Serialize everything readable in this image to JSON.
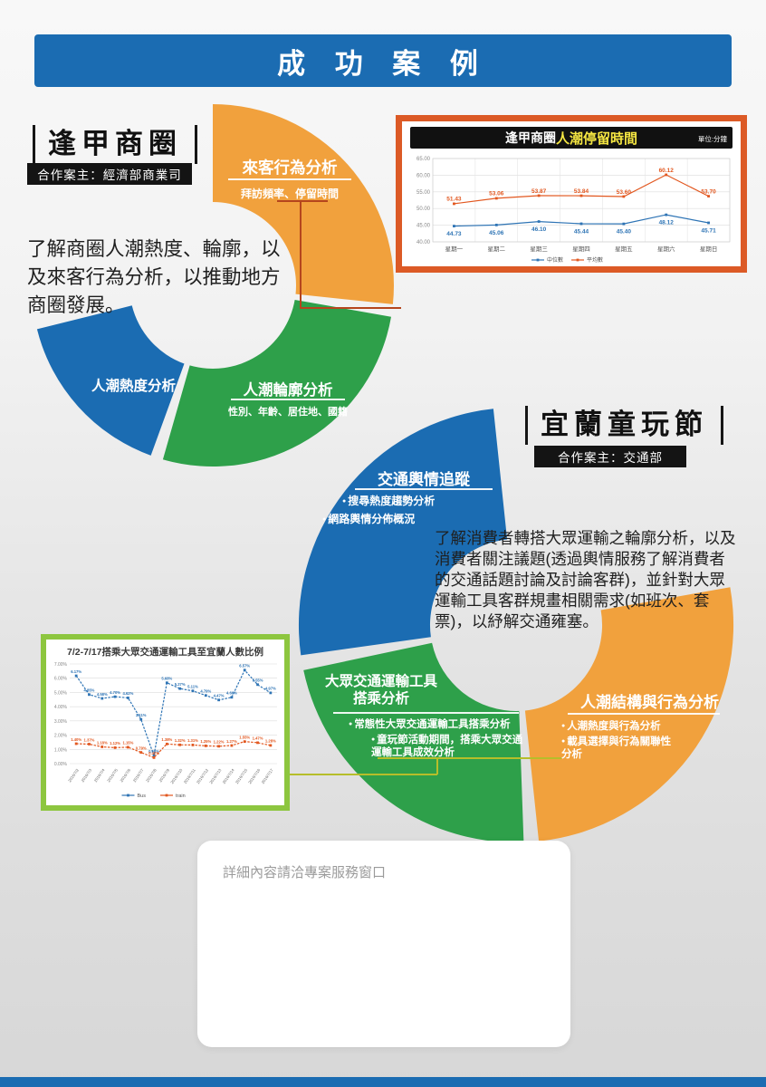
{
  "page": {
    "banner": "成 功 案 例",
    "note": "詳細內容請洽專案服務窗口"
  },
  "colors": {
    "primary_blue": "#1b6cb2",
    "orange": "#f1a13d",
    "green": "#2ea04a",
    "chart1_border": "#dc5a26",
    "chart2_border": "#8dc63f",
    "chart_blue": "#2e74b5",
    "chart_orange": "#e2571f",
    "highlight_yellow": "#f5e642",
    "connector_red": "#b5451d",
    "connector_olive": "#b6be2a"
  },
  "fengjia": {
    "title": "逢甲商圈",
    "client": "合作案主：經濟部商業司",
    "description": "了解商圈人潮熱度、輪廓，以及來客行為分析，以推動地方商圈發展。",
    "segments": {
      "orange": {
        "title": "來客行為分析",
        "subtitle": "拜訪頻率、停留時間"
      },
      "blue": {
        "title": "人潮熱度分析"
      },
      "green": {
        "title": "人潮輪廓分析",
        "subtitle": "性別、年齡、居住地、國籍"
      }
    }
  },
  "yilan": {
    "title": "宜蘭童玩節",
    "client": "合作案主：交通部",
    "description": "了解消費者轉搭大眾運輸之輪廓分析，以及消費者關注議題(透過輿情服務了解消費者的交通話題討論及討論客群)，並針對大眾運輸工具客群規畫相關需求(如班次、套票)，以紓解交通雍塞。",
    "segments": {
      "blue": {
        "title": "交通輿情追蹤",
        "bullets": [
          "搜尋熱度趨勢分析",
          "網路輿情分佈概況"
        ]
      },
      "green": {
        "title_line1": "大眾交通運輸工具",
        "title_line2": "搭乘分析",
        "bullets": [
          "常態性大眾交通運輸工具搭乘分析",
          "童玩節活動期間，搭乘大眾交通運輸工具成效分析"
        ]
      },
      "orange": {
        "title": "人潮結構與行為分析",
        "bullets": [
          "人潮熱度與行為分析",
          "載具選擇與行為關聯性分析"
        ]
      }
    }
  },
  "chart_data": [
    {
      "type": "line",
      "title": "逢甲商圈人潮停留時間",
      "title_prefix": "逢甲商圈",
      "title_highlight": "人潮停留時間",
      "unit_label": "單位:分鐘",
      "categories": [
        "星期一",
        "星期二",
        "星期三",
        "星期四",
        "星期五",
        "星期六",
        "星期日"
      ],
      "series": [
        {
          "name": "中位數",
          "color": "#2e74b5",
          "values": [
            44.73,
            45.06,
            46.1,
            45.44,
            45.4,
            48.12,
            45.71
          ]
        },
        {
          "name": "平均數",
          "color": "#e2571f",
          "values": [
            51.43,
            53.06,
            53.87,
            53.84,
            53.6,
            60.12,
            53.7
          ]
        }
      ],
      "ylim": [
        40,
        65
      ],
      "ytick_step": 5,
      "grid": true,
      "legend_position": "bottom"
    },
    {
      "type": "line",
      "title": "7/2-7/17搭乘大眾交通運輸工具至宜蘭人數比例",
      "categories": [
        "2016/7/2",
        "2016/7/3",
        "2016/7/4",
        "2016/7/5",
        "2016/7/6",
        "2016/7/7",
        "2016/7/8",
        "2016/7/9",
        "2016/7/10",
        "2016/7/11",
        "2016/7/12",
        "2016/7/13",
        "2016/7/14",
        "2016/7/15",
        "2016/7/16",
        "2016/7/17"
      ],
      "series": [
        {
          "name": "Bus",
          "color": "#2e74b5",
          "values": [
            6.17,
            4.85,
            4.58,
            4.7,
            4.62,
            3.11,
            0.56,
            5.68,
            5.27,
            5.11,
            4.79,
            4.47,
            4.66,
            6.57,
            5.55,
            4.97
          ]
        },
        {
          "name": "train",
          "color": "#e2571f",
          "values": [
            1.4,
            1.37,
            1.18,
            1.12,
            1.15,
            0.79,
            0.42,
            1.38,
            1.32,
            1.31,
            1.25,
            1.22,
            1.27,
            1.55,
            1.47,
            1.28
          ]
        }
      ],
      "ylim": [
        0,
        7
      ],
      "ytick_step": 1,
      "grid": true,
      "legend_position": "bottom"
    }
  ]
}
